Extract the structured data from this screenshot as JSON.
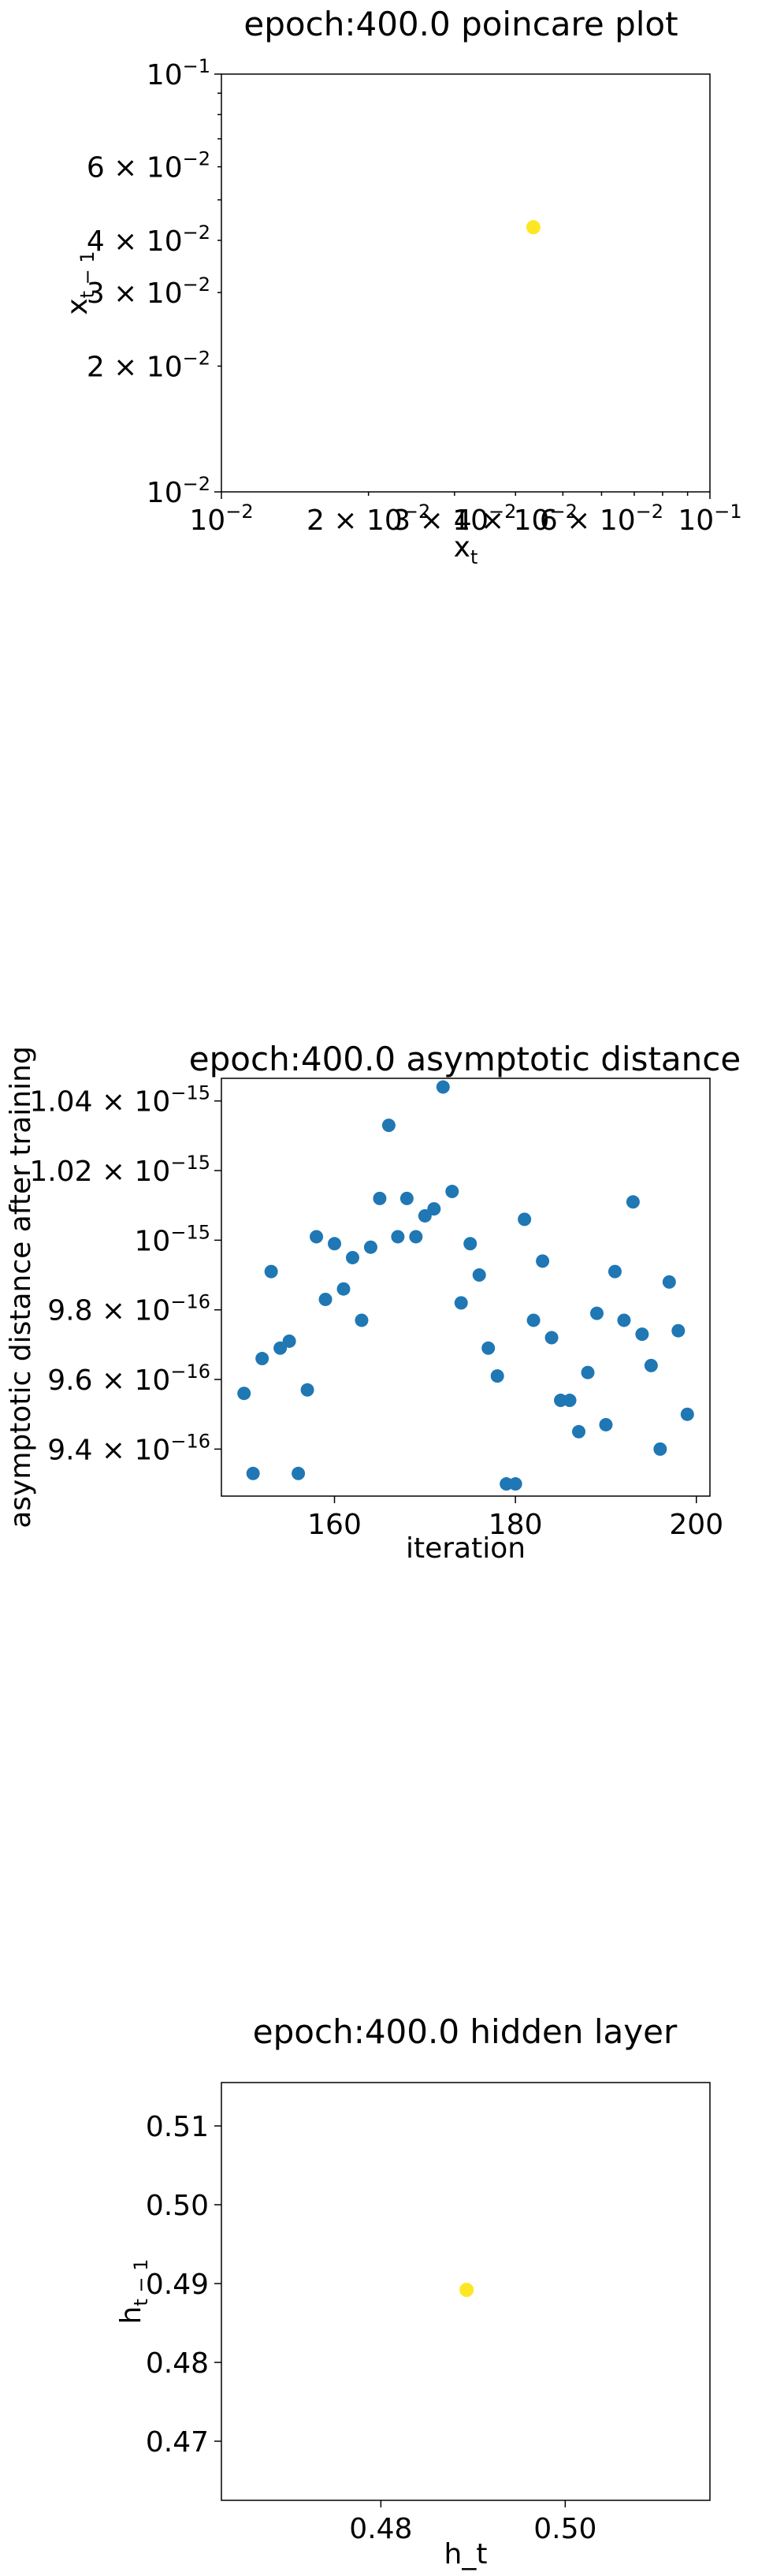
{
  "chart_data": [
    {
      "type": "scatter",
      "title": "epoch:400.0 poincare plot",
      "xlabel_main": "x",
      "xlabel_sub": "t",
      "ylabel_main": "x",
      "ylabel_sub": "t − 1",
      "xscale": "log",
      "yscale": "log",
      "xlim": [
        0.01,
        0.1
      ],
      "ylim": [
        0.01,
        0.1
      ],
      "grid": false,
      "point_color": "#FDE725",
      "x_ticks": [
        {
          "value": 0.01,
          "base": "10",
          "exp": "−2"
        },
        {
          "value": 0.1,
          "base": "10",
          "exp": "−1"
        }
      ],
      "x_minor_ticks": [
        {
          "value": 0.02,
          "mant": "2 × ",
          "base": "10",
          "exp": "−2"
        },
        {
          "value": 0.03,
          "mant": "3 × ",
          "base": "10",
          "exp": "−2"
        },
        {
          "value": 0.04,
          "mant": "4 × ",
          "base": "10",
          "exp": "−2"
        },
        {
          "value": 0.06,
          "mant": "6 × ",
          "base": "10",
          "exp": "−2"
        }
      ],
      "y_ticks": [
        {
          "value": 0.01,
          "mant": "",
          "base": "10",
          "exp": "−2"
        },
        {
          "value": 0.02,
          "mant": "2 × ",
          "base": "10",
          "exp": "−2"
        },
        {
          "value": 0.03,
          "mant": "3 × ",
          "base": "10",
          "exp": "−2"
        },
        {
          "value": 0.04,
          "mant": "4 × ",
          "base": "10",
          "exp": "−2"
        },
        {
          "value": 0.06,
          "mant": "6 × ",
          "base": "10",
          "exp": "−2"
        },
        {
          "value": 0.1,
          "mant": "",
          "base": "10",
          "exp": "−1"
        }
      ],
      "points": [
        {
          "x": 0.0435,
          "y": 0.043
        }
      ]
    },
    {
      "type": "scatter",
      "title": "epoch:400.0 asymptotic distance",
      "xlabel": "iteration",
      "ylabel": "asymptotic distance after training",
      "xlim": [
        147.5,
        201.5
      ],
      "ylim": [
        9.265e-16,
        1.0465e-15
      ],
      "grid": false,
      "point_color": "#1F77B4",
      "x_ticks": [
        {
          "value": 160,
          "label": "160"
        },
        {
          "value": 180,
          "label": "180"
        },
        {
          "value": 200,
          "label": "200"
        }
      ],
      "y_ticks": [
        {
          "value": 9.4e-16,
          "mant": "9.4 × ",
          "base": "10",
          "exp": "−16"
        },
        {
          "value": 9.6e-16,
          "mant": "9.6 × ",
          "base": "10",
          "exp": "−16"
        },
        {
          "value": 9.8e-16,
          "mant": "9.8 × ",
          "base": "10",
          "exp": "−16"
        },
        {
          "value": 1e-15,
          "mant": "",
          "base": "10",
          "exp": "−15"
        },
        {
          "value": 1.02e-15,
          "mant": "1.02 × ",
          "base": "10",
          "exp": "−15"
        },
        {
          "value": 1.04e-15,
          "mant": "1.04 × ",
          "base": "10",
          "exp": "−15"
        }
      ],
      "x": [
        150,
        151,
        152,
        153,
        154,
        155,
        156,
        157,
        158,
        159,
        160,
        161,
        162,
        163,
        164,
        165,
        166,
        167,
        168,
        169,
        170,
        171,
        172,
        173,
        174,
        175,
        176,
        177,
        178,
        179,
        180,
        181,
        182,
        183,
        184,
        185,
        186,
        187,
        188,
        189,
        190,
        191,
        192,
        193,
        194,
        195,
        196,
        197,
        198,
        199
      ],
      "y": [
        9.56e-16,
        9.33e-16,
        9.66e-16,
        9.91e-16,
        9.69e-16,
        9.71e-16,
        9.33e-16,
        9.57e-16,
        1.001e-15,
        9.83e-16,
        9.99e-16,
        9.86e-16,
        9.95e-16,
        9.77e-16,
        9.98e-16,
        1.012e-15,
        1.033e-15,
        1.001e-15,
        1.012e-15,
        1.001e-15,
        1.007e-15,
        1.009e-15,
        1.044e-15,
        1.014e-15,
        9.82e-16,
        9.99e-16,
        9.9e-16,
        9.69e-16,
        9.61e-16,
        9.3e-16,
        9.3e-16,
        1.006e-15,
        9.77e-16,
        9.94e-16,
        9.72e-16,
        9.54e-16,
        9.54e-16,
        9.45e-16,
        9.62e-16,
        9.79e-16,
        9.47e-16,
        9.91e-16,
        9.77e-16,
        1.011e-15,
        9.73e-16,
        9.64e-16,
        9.4e-16,
        9.88e-16,
        9.74e-16,
        9.5e-16
      ]
    },
    {
      "type": "scatter",
      "title": "epoch:400.0 hidden layer",
      "xlabel": "h_t",
      "ylabel_main": "h",
      "ylabel_sub": "t − 1",
      "xlim": [
        0.4627,
        0.5157
      ],
      "ylim": [
        0.4625,
        0.5155
      ],
      "grid": false,
      "point_color": "#FDE725",
      "x_ticks": [
        {
          "value": 0.48,
          "label": "0.48"
        },
        {
          "value": 0.5,
          "label": "0.50"
        }
      ],
      "y_ticks": [
        {
          "value": 0.47,
          "label": "0.47"
        },
        {
          "value": 0.48,
          "label": "0.48"
        },
        {
          "value": 0.49,
          "label": "0.49"
        },
        {
          "value": 0.5,
          "label": "0.50"
        },
        {
          "value": 0.51,
          "label": "0.51"
        }
      ],
      "points": [
        {
          "x": 0.4893,
          "y": 0.4892
        }
      ]
    }
  ]
}
